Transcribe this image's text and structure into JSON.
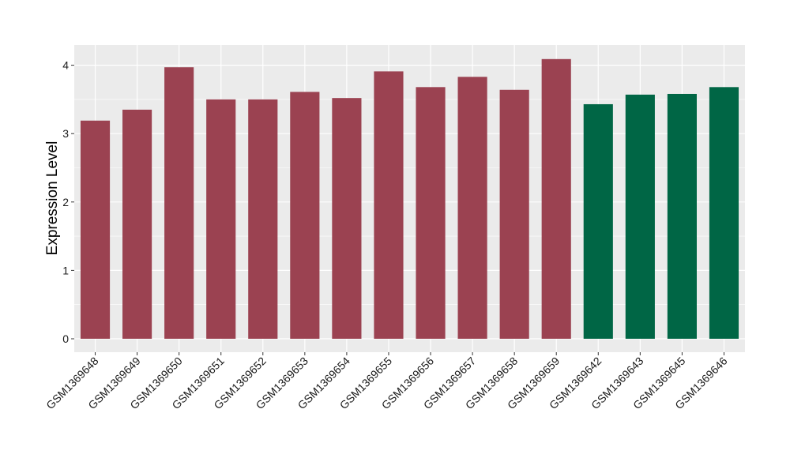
{
  "chart_data": {
    "type": "bar",
    "title": "",
    "xlabel": "",
    "ylabel": "Expression Level",
    "ylim": [
      0,
      4.2
    ],
    "yticks": [
      0,
      1,
      2,
      3,
      4
    ],
    "grid": true,
    "legend": "none",
    "categories": [
      "GSM1369648",
      "GSM1369649",
      "GSM1369650",
      "GSM1369651",
      "GSM1369652",
      "GSM1369653",
      "GSM1369654",
      "GSM1369655",
      "GSM1369656",
      "GSM1369657",
      "GSM1369658",
      "GSM1369659",
      "GSM1369642",
      "GSM1369643",
      "GSM1369645",
      "GSM1369646"
    ],
    "values": [
      3.19,
      3.35,
      3.97,
      3.5,
      3.5,
      3.61,
      3.52,
      3.91,
      3.68,
      3.83,
      3.64,
      4.09,
      3.43,
      3.57,
      3.58,
      3.68
    ],
    "bar_colors": [
      "#9b4251",
      "#9b4251",
      "#9b4251",
      "#9b4251",
      "#9b4251",
      "#9b4251",
      "#9b4251",
      "#9b4251",
      "#9b4251",
      "#9b4251",
      "#9b4251",
      "#9b4251",
      "#006645",
      "#006645",
      "#006645",
      "#006645"
    ],
    "panel_background": "#ebebeb",
    "grid_color": "#ffffff"
  }
}
